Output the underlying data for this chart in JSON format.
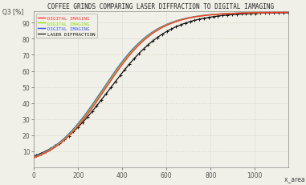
{
  "title": "COFFEE GRINDS COMPARING LASER DIFFRACTION TO DIGITAL IAMAGING",
  "xlabel": "x_area [μm]",
  "ylabel": "Q3 [%]",
  "xlim": [
    0,
    1150
  ],
  "ylim": [
    0,
    97
  ],
  "xticks": [
    0,
    200,
    400,
    600,
    800,
    1000
  ],
  "yticks": [
    10,
    20,
    30,
    40,
    50,
    60,
    70,
    80,
    90
  ],
  "background_color": "#f0f0e8",
  "grid_color": "#ccccbb",
  "series": [
    {
      "label": "DIGITAL IMAGING",
      "color": "#ff3030",
      "linewidth": 1.0,
      "zorder": 4,
      "k": 0.0085,
      "x0": 320,
      "ymax": 96.5
    },
    {
      "label": "DIGITAL IMAGING",
      "color": "#88dd00",
      "linewidth": 1.0,
      "zorder": 3,
      "k": 0.0085,
      "x0": 315,
      "ymax": 96.5
    },
    {
      "label": "DIGITAL IMAGING",
      "color": "#3355ee",
      "linewidth": 1.0,
      "zorder": 2,
      "k": 0.0085,
      "x0": 310,
      "ymax": 96.5
    },
    {
      "label": "LASER DIFFRACTION",
      "color": "#111111",
      "linewidth": 0.9,
      "zorder": 1,
      "k": 0.0075,
      "x0": 340,
      "ymax": 96.5
    }
  ],
  "legend_colors": [
    "#ff3030",
    "#88dd00",
    "#3355ee",
    "#111111"
  ],
  "title_fontsize": 5.5,
  "tick_fontsize": 5.5,
  "label_fontsize": 5.5
}
